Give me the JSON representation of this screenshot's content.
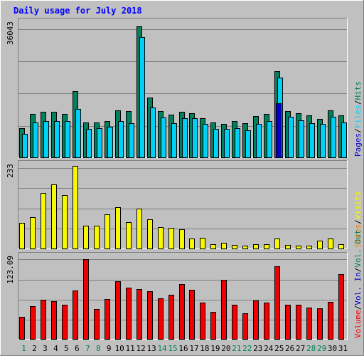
{
  "chart_data": [
    {
      "type": "bar",
      "title": "Daily usage for July 2018",
      "panel": "top",
      "ymax_label": "36043",
      "ylim": [
        0,
        36043
      ],
      "categories": [
        "1",
        "2",
        "3",
        "4",
        "5",
        "6",
        "7",
        "8",
        "9",
        "10",
        "11",
        "12",
        "13",
        "14",
        "15",
        "16",
        "17",
        "18",
        "19",
        "20",
        "21",
        "22",
        "23",
        "24",
        "25",
        "26",
        "27",
        "28",
        "29",
        "30",
        "31"
      ],
      "series": [
        {
          "name": "Hits",
          "color": "#00805c",
          "values": [
            7700,
            11500,
            12000,
            12000,
            11600,
            17600,
            9200,
            9200,
            9700,
            12500,
            12200,
            34800,
            15800,
            12300,
            11300,
            12100,
            11700,
            10400,
            9300,
            8800,
            9600,
            9000,
            11000,
            11500,
            22800,
            12300,
            11700,
            11200,
            10100,
            12400,
            11200
          ]
        },
        {
          "name": "Files",
          "color": "#00d0f8",
          "values": [
            6200,
            9200,
            9700,
            9700,
            9600,
            12800,
            7500,
            7700,
            8100,
            9700,
            9000,
            31900,
            13300,
            10600,
            9000,
            10300,
            10300,
            8900,
            7500,
            7600,
            7800,
            7200,
            8800,
            9600,
            21200,
            10800,
            9900,
            9100,
            8800,
            10800,
            9300
          ]
        },
        {
          "name": "Pages",
          "color": "#0000c8",
          "values": [
            0,
            0,
            0,
            0,
            0,
            0,
            0,
            0,
            0,
            0,
            0,
            0,
            0,
            0,
            0,
            0,
            0,
            0,
            0,
            0,
            0,
            0,
            0,
            0,
            14400,
            0,
            0,
            0,
            0,
            0,
            0
          ]
        }
      ]
    },
    {
      "type": "bar",
      "panel": "middle",
      "ymax_label": "233",
      "ylim": [
        0,
        233
      ],
      "categories": [
        "1",
        "2",
        "3",
        "4",
        "5",
        "6",
        "7",
        "8",
        "9",
        "10",
        "11",
        "12",
        "13",
        "14",
        "15",
        "16",
        "17",
        "18",
        "19",
        "20",
        "21",
        "22",
        "23",
        "24",
        "25",
        "26",
        "27",
        "28",
        "29",
        "30",
        "31"
      ],
      "series": [
        {
          "name": "Visits",
          "color": "#f8f800",
          "values": [
            70,
            86,
            152,
            177,
            147,
            228,
            63,
            63,
            94,
            113,
            73,
            109,
            81,
            59,
            56,
            52,
            27,
            30,
            12,
            15,
            10,
            8,
            12,
            12,
            28,
            9,
            8,
            8,
            22,
            27,
            11
          ]
        },
        {
          "name": "Sites",
          "color": "#f88000",
          "values": [
            0,
            0,
            0,
            0,
            0,
            0,
            0,
            0,
            0,
            0,
            0,
            0,
            0,
            0,
            0,
            0,
            0,
            0,
            0,
            0,
            0,
            0,
            0,
            0,
            0,
            0,
            0,
            0,
            0,
            0,
            0
          ]
        }
      ]
    },
    {
      "type": "bar",
      "panel": "bottom",
      "ymax_label": "123.09",
      "ylim": [
        0,
        123.09
      ],
      "categories": [
        "1",
        "2",
        "3",
        "4",
        "5",
        "6",
        "7",
        "8",
        "9",
        "10",
        "11",
        "12",
        "13",
        "14",
        "15",
        "16",
        "17",
        "18",
        "19",
        "20",
        "21",
        "22",
        "23",
        "24",
        "25",
        "26",
        "27",
        "28",
        "29",
        "30",
        "31"
      ],
      "series": [
        {
          "name": "Volume",
          "color": "#f00000",
          "values": [
            33,
            48,
            58,
            56,
            50,
            72,
            118,
            44,
            59,
            85,
            76,
            74,
            70,
            60,
            65,
            81,
            73,
            54,
            40,
            87,
            50,
            38,
            57,
            54,
            107,
            50,
            50,
            46,
            45,
            55,
            96
          ]
        }
      ]
    }
  ],
  "legend_right": {
    "top": [
      {
        "text": "Hits",
        "color": "#00805c"
      },
      {
        "text": "Files",
        "color": "#00d0f8"
      },
      {
        "text": "Pages",
        "color": "#0000c8"
      }
    ],
    "middle": [
      {
        "text": "Visits",
        "color": "#f8f800"
      },
      {
        "text": "Sites",
        "color": "#f88000"
      }
    ],
    "bottom": [
      {
        "text": "Vol. Out",
        "color": "#00805c"
      },
      {
        "text": "Vol. In",
        "color": "#0000c8"
      },
      {
        "text": "Volume",
        "color": "#f00000"
      }
    ],
    "separator": "/"
  },
  "x_axis": {
    "days": [
      "1",
      "2",
      "3",
      "4",
      "5",
      "6",
      "7",
      "8",
      "9",
      "10",
      "11",
      "12",
      "13",
      "14",
      "15",
      "16",
      "17",
      "18",
      "19",
      "20",
      "21",
      "22",
      "23",
      "24",
      "25",
      "26",
      "27",
      "28",
      "29",
      "30",
      "31"
    ],
    "weekend_days": [
      "1",
      "7",
      "8",
      "14",
      "15",
      "21",
      "22",
      "28",
      "29"
    ],
    "weekend_color": "#00805c",
    "weekday_color": "#000000"
  },
  "colors": {
    "background": "#c0c0c0",
    "title": "#0000ff",
    "grid": "#808080"
  }
}
